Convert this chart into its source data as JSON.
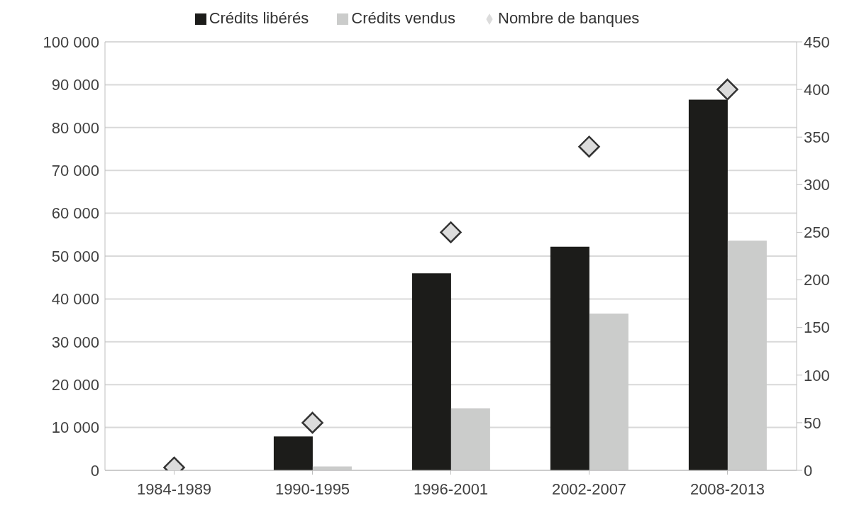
{
  "chart_data": {
    "type": "bar",
    "categories": [
      "1984-1989",
      "1990-1995",
      "1996-2001",
      "2002-2007",
      "2008-2013"
    ],
    "series": [
      {
        "name": "Crédits libérés",
        "color": "#1c1c1a",
        "values": [
          0,
          7900,
          46000,
          52200,
          86500
        ]
      },
      {
        "name": "Crédits vendus",
        "color": "#cbcccb",
        "values": [
          0,
          900,
          14500,
          36600,
          53600
        ]
      },
      {
        "name": "Nombre de banques",
        "type": "scatter",
        "axis": "y2",
        "color": "#dcdcdc",
        "marker": "diamond",
        "values": [
          3,
          50,
          250,
          340,
          400
        ]
      }
    ],
    "ylim": [
      0,
      100000
    ],
    "yticks": [
      0,
      {
        "value": 10000,
        "label": "10 000"
      },
      {
        "value": 20000,
        "label": "20 000"
      },
      {
        "value": 30000,
        "label": "30 000"
      },
      {
        "value": 40000,
        "label": "40 000"
      },
      {
        "value": 50000,
        "label": "50 000"
      },
      {
        "value": 60000,
        "label": "60 000"
      },
      {
        "value": 70000,
        "label": "70 000"
      },
      {
        "value": 80000,
        "label": "80 000"
      },
      {
        "value": 90000,
        "label": "90 000"
      },
      {
        "value": 100000,
        "label": "100 000"
      }
    ],
    "y2lim": [
      0,
      450
    ],
    "y2ticks": [
      0,
      50,
      100,
      150,
      200,
      250,
      300,
      350,
      400,
      450
    ],
    "grid": "y",
    "legend": "top"
  }
}
